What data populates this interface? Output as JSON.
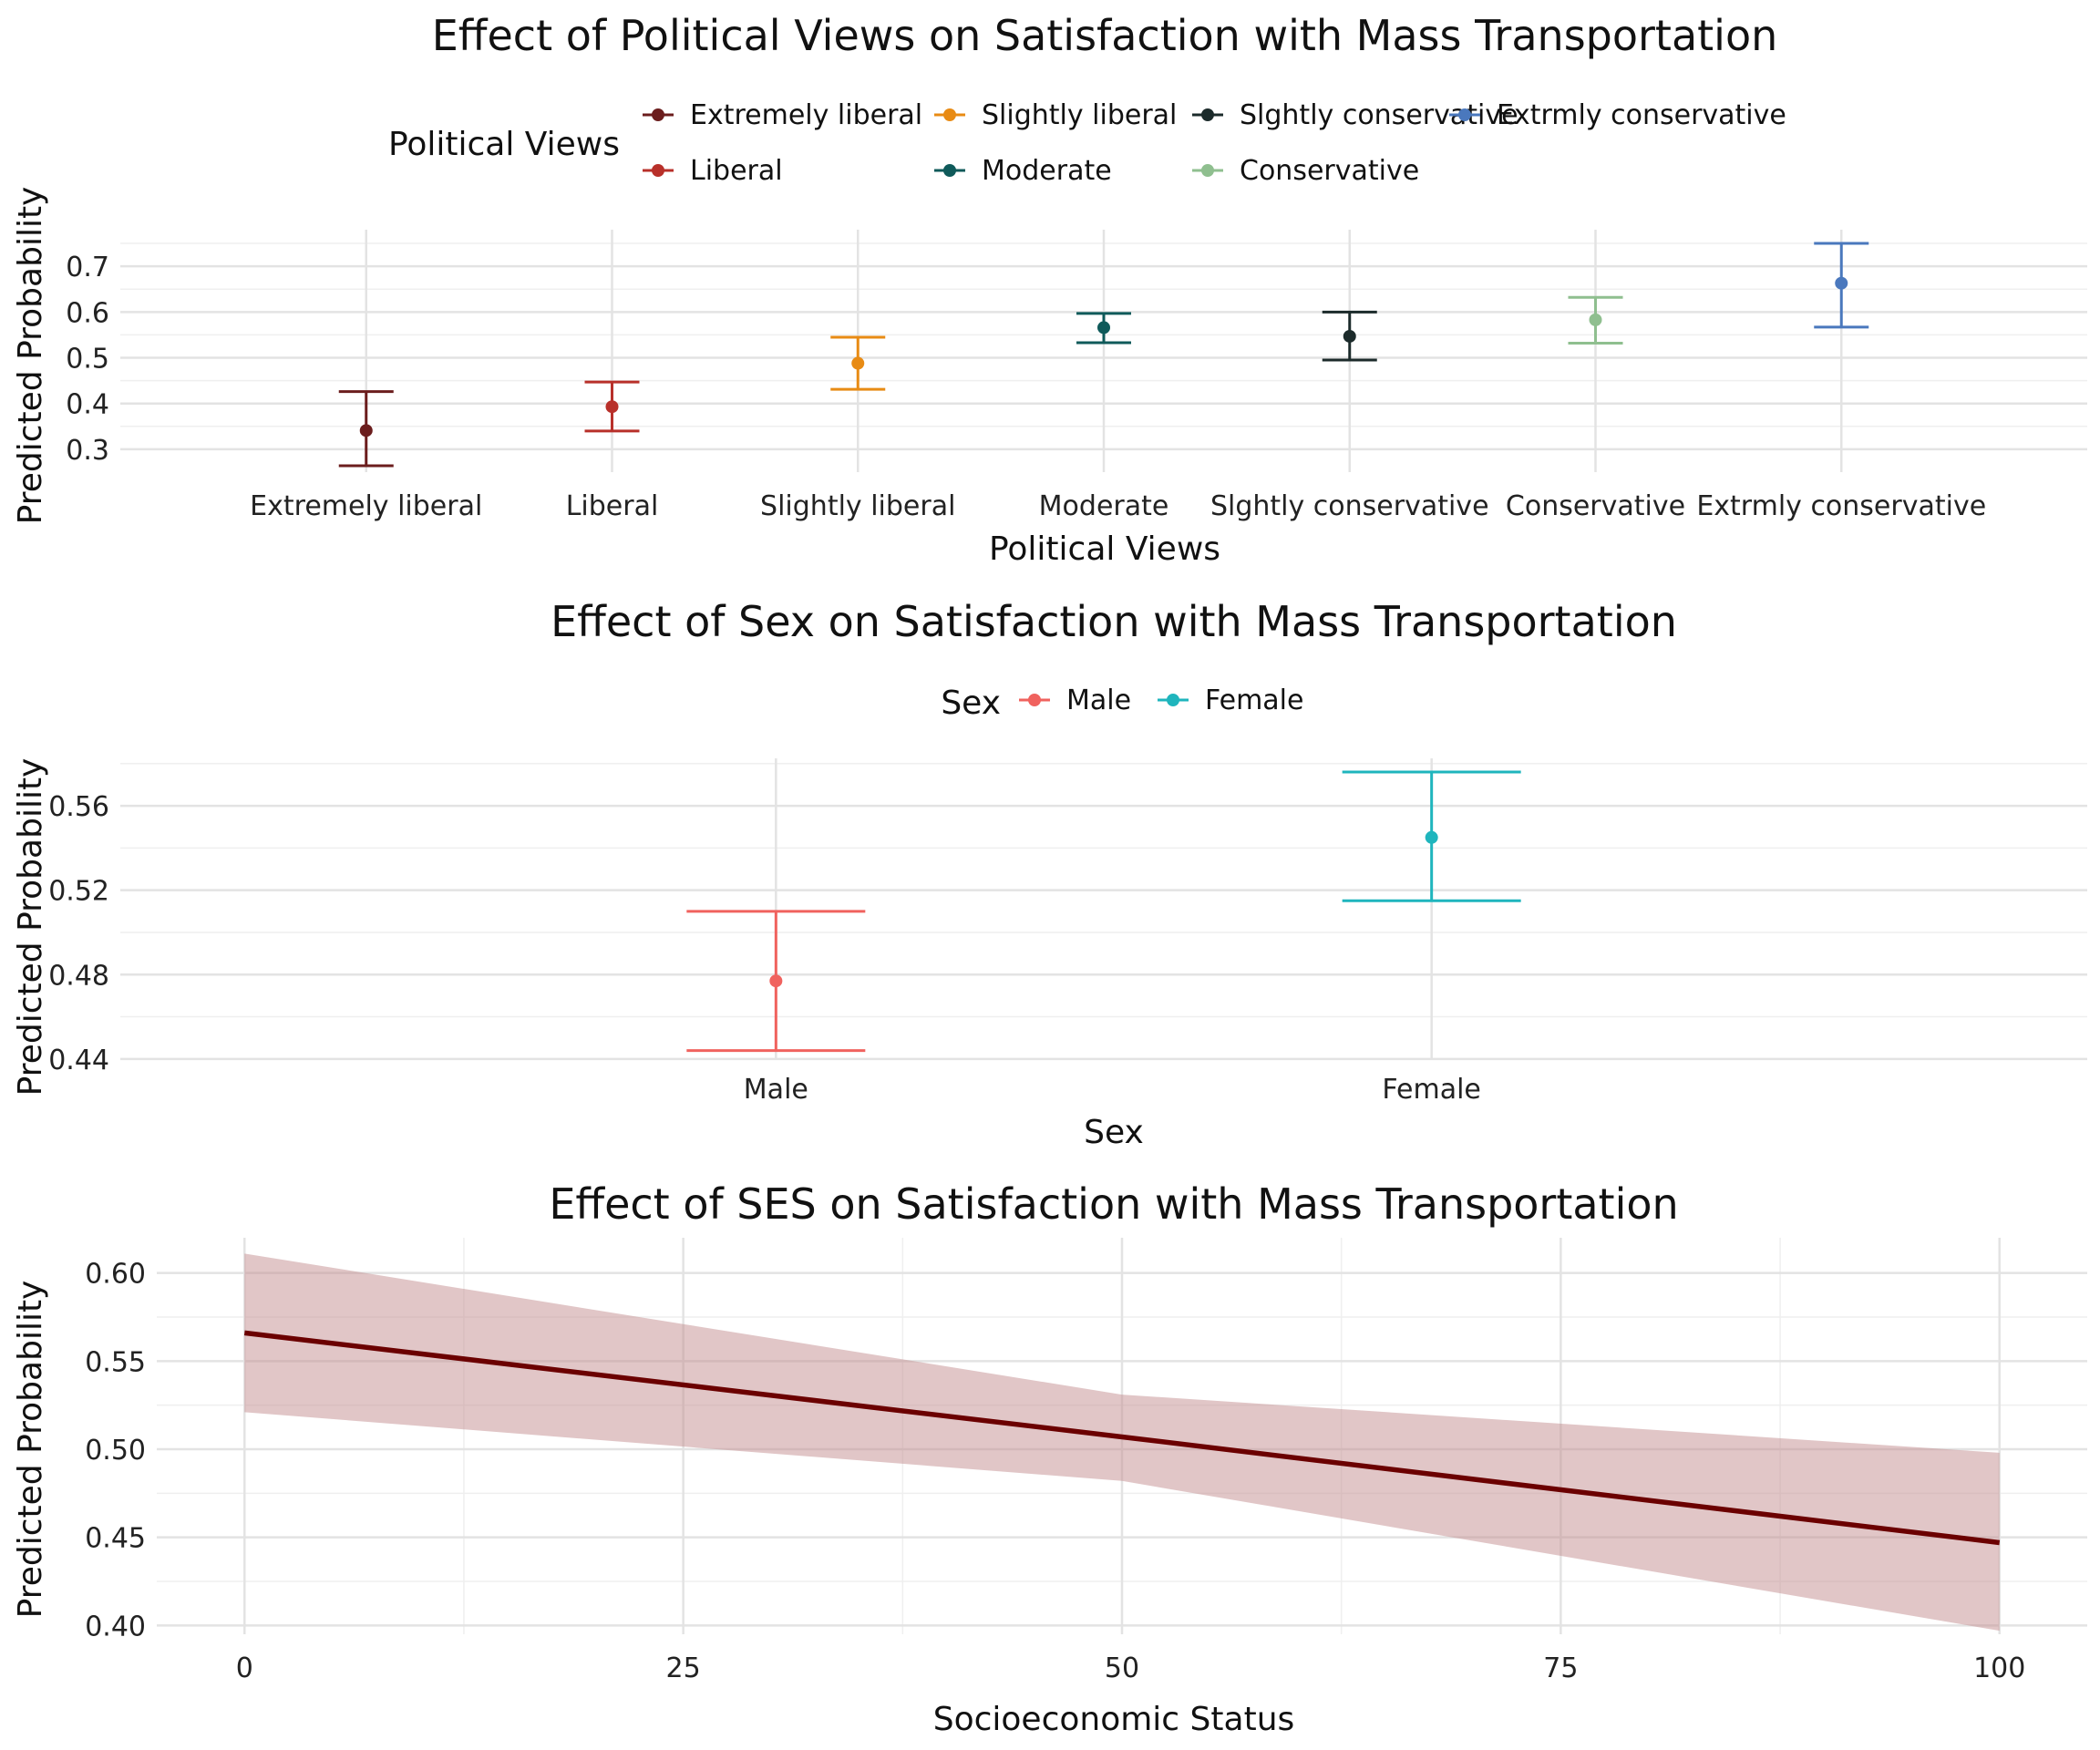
{
  "chart_data": [
    {
      "type": "scatter",
      "subtype": "point-errorbar",
      "title": "Effect of Political Views on Satisfaction with Mass Transportation",
      "xlabel": "Political Views",
      "ylabel": "Predicted Probability",
      "legend": {
        "title": "Political Views",
        "placement": "top"
      },
      "categories": [
        "Extremely liberal",
        "Liberal",
        "Slightly liberal",
        "Moderate",
        "Slghtly conservative",
        "Conservative",
        "Extrmly conservative"
      ],
      "values": [
        0.341,
        0.393,
        0.488,
        0.566,
        0.547,
        0.583,
        0.663
      ],
      "lower": [
        0.264,
        0.34,
        0.431,
        0.533,
        0.495,
        0.532,
        0.567
      ],
      "upper": [
        0.426,
        0.447,
        0.545,
        0.597,
        0.6,
        0.632,
        0.75
      ],
      "colors": [
        "#6b1d1d",
        "#b8302a",
        "#e88b14",
        "#0f5a5a",
        "#1c2b2b",
        "#8fbf8f",
        "#4a78bd"
      ],
      "yticks": [
        "0.3",
        "0.4",
        "0.5",
        "0.6",
        "0.7"
      ],
      "ylim": [
        0.25,
        0.78
      ],
      "grid": true
    },
    {
      "type": "scatter",
      "subtype": "point-errorbar",
      "title": "Effect of Sex on Satisfaction with Mass Transportation",
      "xlabel": "Sex",
      "ylabel": "Predicted Probability",
      "legend": {
        "title": "Sex",
        "placement": "top"
      },
      "categories": [
        "Male",
        "Female"
      ],
      "values": [
        0.477,
        0.545
      ],
      "lower": [
        0.444,
        0.515
      ],
      "upper": [
        0.51,
        0.576
      ],
      "colors": [
        "#f0625e",
        "#1fb5bd"
      ],
      "yticks": [
        "0.44",
        "0.48",
        "0.52",
        "0.56"
      ],
      "ylim": [
        0.4395,
        0.5825
      ],
      "grid": true
    },
    {
      "type": "line",
      "subtype": "line-ribbon",
      "title": "Effect of SES on Satisfaction with Mass Transportation",
      "xlabel": "Socioeconomic Status",
      "ylabel": "Predicted Probability",
      "x": [
        0,
        50,
        100
      ],
      "y": [
        0.566,
        0.507,
        0.447
      ],
      "lower": [
        0.521,
        0.482,
        0.397
      ],
      "upper": [
        0.611,
        0.531,
        0.498
      ],
      "line_color": "#6b0000",
      "ribbon_color": "#c48e90",
      "xticks": [
        "0",
        "25",
        "50",
        "75",
        "100"
      ],
      "yticks": [
        "0.40",
        "0.45",
        "0.50",
        "0.55",
        "0.60"
      ],
      "xlim": [
        -5,
        105
      ],
      "ylim": [
        0.395,
        0.62
      ],
      "grid": true
    }
  ]
}
